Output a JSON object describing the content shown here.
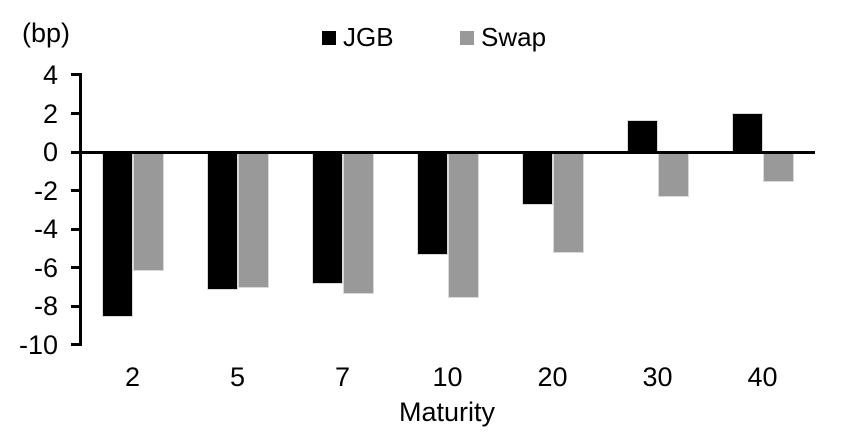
{
  "header": {
    "unit_label": "(bp)"
  },
  "chart_data": {
    "type": "bar",
    "title": "",
    "categories": [
      "2",
      "5",
      "7",
      "10",
      "20",
      "30",
      "40"
    ],
    "series": [
      {
        "name": "JGB",
        "color": "#000000",
        "values": [
          -8.5,
          -7.1,
          -6.8,
          -5.3,
          -2.7,
          1.6,
          2.0
        ]
      },
      {
        "name": "Swap",
        "color": "#999999",
        "values": [
          -6.1,
          -7.0,
          -7.3,
          -7.5,
          -5.2,
          -2.3,
          -1.5
        ]
      }
    ],
    "xlabel": "Maturity",
    "ylabel": "(bp)",
    "ylim": [
      -10,
      4
    ],
    "yticks": [
      4,
      2,
      0,
      -2,
      -4,
      -6,
      -8,
      -10
    ],
    "grid": false,
    "legend_position": "top",
    "axis_color": "#000000",
    "bar_edge_color": "#d9d9d9"
  }
}
